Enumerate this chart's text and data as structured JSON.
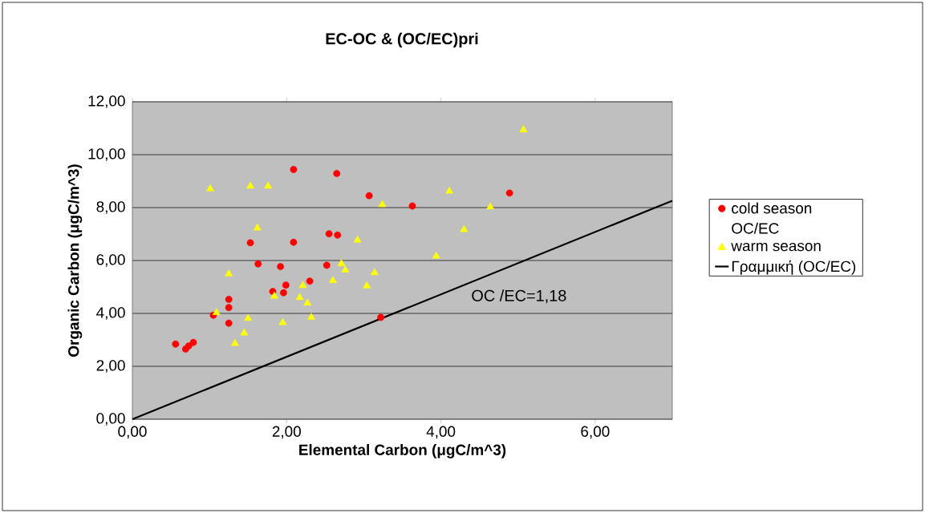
{
  "chart_data": {
    "type": "scatter",
    "title": "EC-OC & (OC/EC)pri",
    "xlabel": "Elemental Carbon (μgC/m^3)",
    "ylabel": "Organic Carbon (μgC/m^3)",
    "xlim": [
      0,
      7
    ],
    "ylim": [
      0,
      12
    ],
    "xticks": [
      {
        "value": 0,
        "label": "0,00"
      },
      {
        "value": 2,
        "label": "2,00"
      },
      {
        "value": 4,
        "label": "4,00"
      },
      {
        "value": 6,
        "label": "6,00"
      }
    ],
    "yticks": [
      {
        "value": 0,
        "label": "0,00"
      },
      {
        "value": 2,
        "label": "2,00"
      },
      {
        "value": 4,
        "label": "4,00"
      },
      {
        "value": 6,
        "label": "6,00"
      },
      {
        "value": 8,
        "label": "8,00"
      },
      {
        "value": 10,
        "label": "10,00"
      },
      {
        "value": 12,
        "label": "12,00"
      }
    ],
    "grid": "y",
    "legend": "right",
    "annotations": [
      "OC /EC=1,18"
    ],
    "series": [
      {
        "name": "cold season",
        "marker": "circle",
        "color": "#ff0000",
        "x": [
          2.09,
          2.65,
          3.07,
          1.53,
          2.09,
          2.55,
          2.66,
          1.63,
          1.92,
          2.52,
          2.3,
          1.99,
          1.82,
          1.96,
          1.25,
          1.25,
          1.05,
          1.25,
          3.22,
          0.56,
          0.69,
          0.73,
          0.79,
          3.63,
          4.89
        ],
        "values": [
          9.44,
          9.29,
          8.45,
          6.67,
          6.69,
          7.01,
          6.96,
          5.87,
          5.77,
          5.82,
          5.22,
          5.07,
          4.83,
          4.78,
          4.53,
          4.22,
          3.93,
          3.63,
          3.85,
          2.84,
          2.65,
          2.77,
          2.9,
          8.06,
          8.55
        ]
      },
      {
        "name": "OC/EC",
        "marker": "none"
      },
      {
        "name": "warm season",
        "marker": "triangle",
        "color": "#ffff00",
        "x": [
          1.01,
          1.53,
          1.76,
          3.24,
          1.62,
          2.92,
          2.71,
          2.76,
          3.14,
          1.25,
          2.21,
          2.6,
          3.04,
          1.84,
          2.17,
          2.27,
          1.09,
          1.5,
          2.32,
          1.95,
          1.45,
          1.33,
          5.07,
          4.11,
          4.64,
          4.3,
          3.94
        ],
        "values": [
          8.71,
          8.81,
          8.81,
          8.11,
          7.23,
          6.77,
          5.88,
          5.64,
          5.54,
          5.49,
          5.05,
          5.24,
          5.04,
          4.65,
          4.6,
          4.39,
          4.03,
          3.81,
          3.85,
          3.65,
          3.26,
          2.86,
          10.94,
          8.62,
          8.02,
          7.17,
          6.17
        ]
      },
      {
        "name": "Γραμμική (OC/EC)",
        "type": "line",
        "marker": "none",
        "line_style": "solid",
        "color": "#000000",
        "x": [
          0,
          7
        ],
        "values": [
          0,
          8.26
        ]
      }
    ]
  }
}
